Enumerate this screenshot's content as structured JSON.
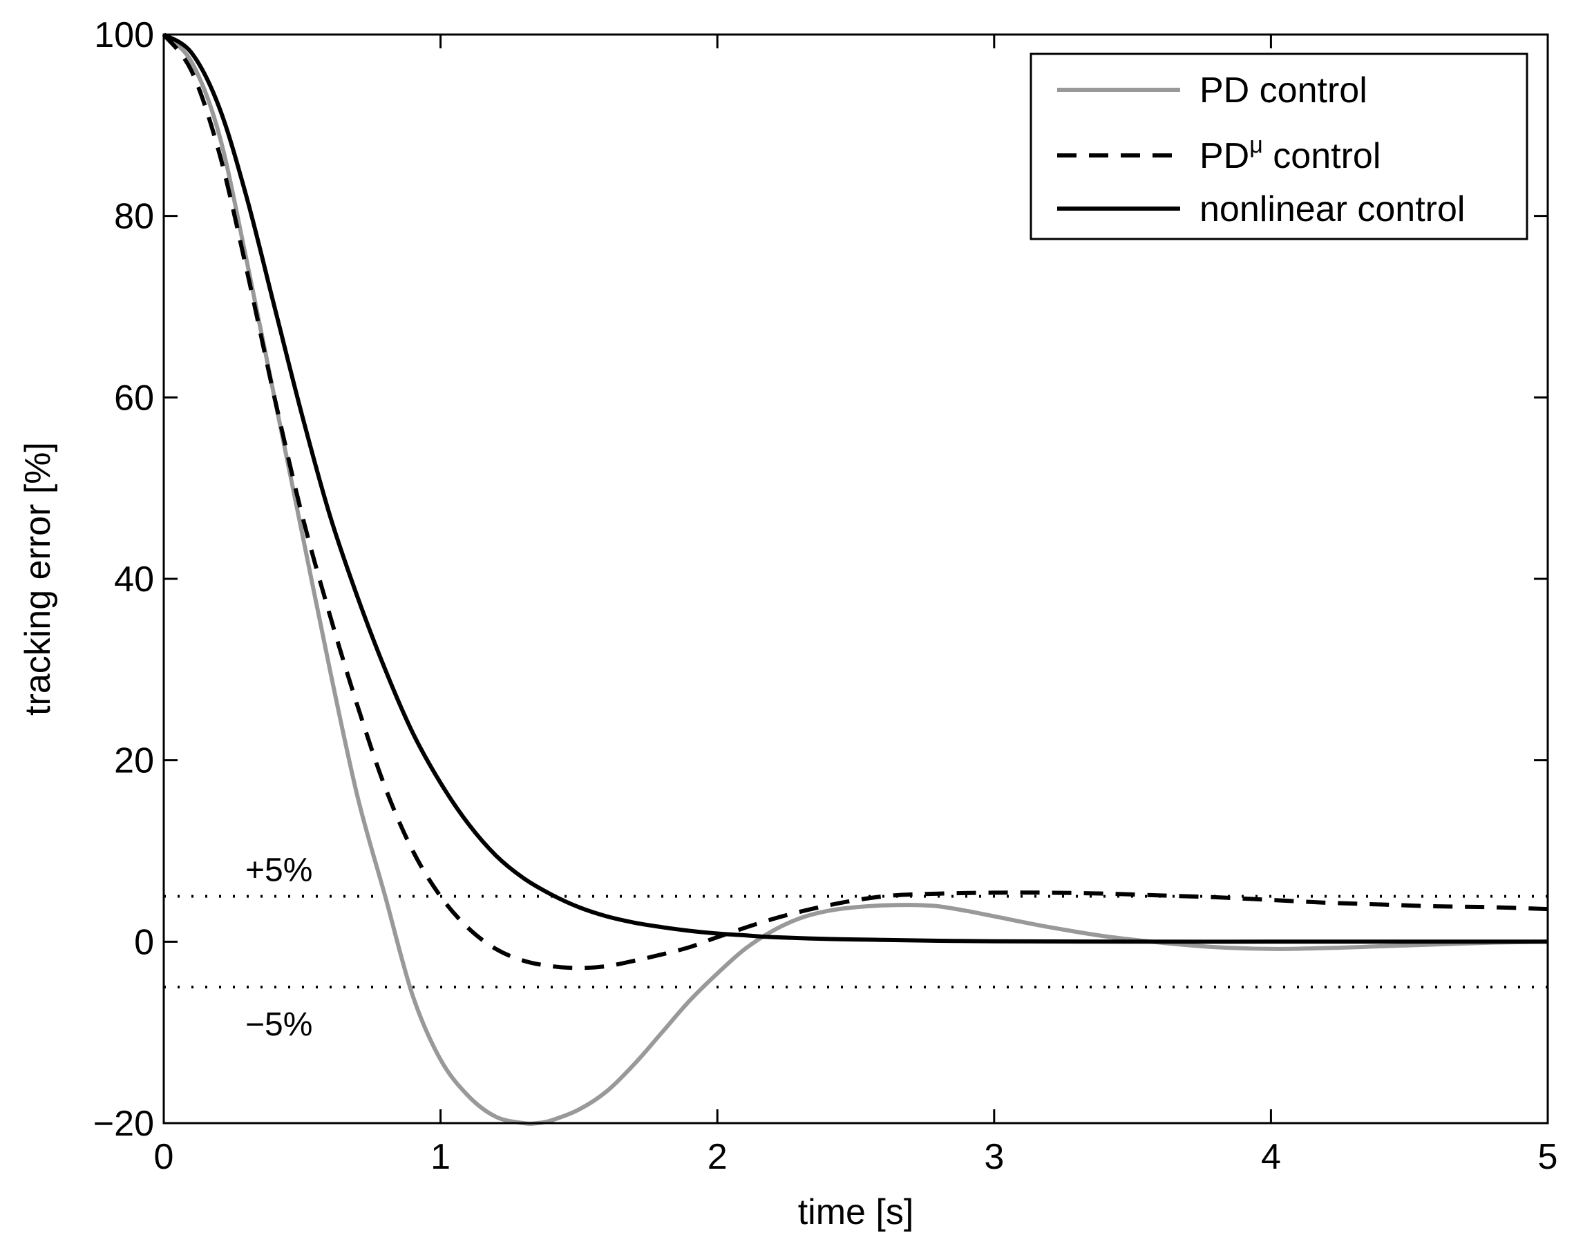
{
  "chart_data": {
    "type": "line",
    "title": "",
    "xlabel": "time  [s]",
    "ylabel": "tracking error  [%]",
    "xlim": [
      0,
      5
    ],
    "ylim": [
      -20,
      100
    ],
    "xticks": [
      0,
      1,
      2,
      3,
      4,
      5
    ],
    "xtick_labels": [
      "0",
      "1",
      "2",
      "3",
      "4",
      "5"
    ],
    "yticks": [
      -20,
      0,
      20,
      40,
      60,
      80,
      100
    ],
    "ytick_labels": [
      "−20",
      "0",
      "20",
      "40",
      "60",
      "80",
      "100"
    ],
    "grid": false,
    "legend": "top-right",
    "colors": {
      "pd": "#999999",
      "pdmu": "#000000",
      "nonlinear": "#000000",
      "band": "#000000"
    },
    "series": [
      {
        "key": "pd",
        "name": "PD control",
        "legend_base": "PD control",
        "legend_sup": "",
        "legend_tail": "",
        "style": "solid-gray",
        "x": [
          0,
          0.1,
          0.2,
          0.3,
          0.4,
          0.5,
          0.6,
          0.7,
          0.8,
          0.9,
          1.0,
          1.1,
          1.2,
          1.3,
          1.35,
          1.4,
          1.5,
          1.6,
          1.7,
          1.8,
          1.9,
          2.0,
          2.1,
          2.2,
          2.3,
          2.4,
          2.5,
          2.6,
          2.7,
          2.75,
          2.8,
          2.9,
          3.0,
          3.2,
          3.4,
          3.6,
          3.8,
          4.0,
          4.2,
          4.4,
          4.6,
          4.8,
          5.0
        ],
        "y": [
          100,
          97,
          89,
          75,
          60,
          45,
          30,
          16,
          5,
          -6,
          -13,
          -17,
          -19.3,
          -20,
          -20,
          -19.7,
          -18.5,
          -16.5,
          -13.5,
          -10,
          -6.5,
          -3.5,
          -0.8,
          1.2,
          2.6,
          3.4,
          3.8,
          4.0,
          4.05,
          4.0,
          3.9,
          3.4,
          2.8,
          1.6,
          0.6,
          -0.1,
          -0.6,
          -0.8,
          -0.7,
          -0.5,
          -0.3,
          -0.1,
          0
        ]
      },
      {
        "key": "pdmu",
        "name": "PDμ control",
        "legend_base": "PD",
        "legend_sup": "μ",
        "legend_tail": " control",
        "style": "dashed-black",
        "x": [
          0,
          0.1,
          0.2,
          0.3,
          0.4,
          0.5,
          0.6,
          0.7,
          0.8,
          0.9,
          1.0,
          1.1,
          1.2,
          1.3,
          1.4,
          1.5,
          1.6,
          1.7,
          1.8,
          1.9,
          2.0,
          2.2,
          2.4,
          2.6,
          2.8,
          3.0,
          3.2,
          3.4,
          3.6,
          3.8,
          4.0,
          4.2,
          4.4,
          4.6,
          4.8,
          5.0
        ],
        "y": [
          100,
          96,
          87,
          74,
          60,
          47,
          36,
          26,
          17,
          10,
          5,
          1.5,
          -0.8,
          -2.1,
          -2.7,
          -2.9,
          -2.7,
          -2.1,
          -1.4,
          -0.6,
          0.5,
          2.5,
          4.0,
          5.0,
          5.3,
          5.4,
          5.4,
          5.3,
          5.1,
          4.9,
          4.6,
          4.3,
          4.1,
          3.9,
          3.8,
          3.6
        ]
      },
      {
        "key": "nonlinear",
        "name": "nonlinear control",
        "legend_base": "nonlinear control",
        "legend_sup": "",
        "legend_tail": "",
        "style": "solid-black",
        "x": [
          0,
          0.1,
          0.2,
          0.3,
          0.4,
          0.5,
          0.6,
          0.7,
          0.8,
          0.9,
          1.0,
          1.1,
          1.2,
          1.3,
          1.4,
          1.5,
          1.6,
          1.7,
          1.8,
          1.9,
          2.0,
          2.1,
          2.2,
          2.4,
          2.6,
          2.8,
          3.0,
          3.5,
          4.0,
          4.5,
          5.0
        ],
        "y": [
          100,
          98,
          92,
          82,
          70,
          58,
          47,
          38,
          30,
          23,
          17.5,
          13,
          9.5,
          7,
          5.2,
          3.8,
          2.8,
          2.1,
          1.6,
          1.2,
          0.9,
          0.7,
          0.5,
          0.3,
          0.2,
          0.1,
          0.05,
          0,
          0,
          0,
          0
        ]
      }
    ],
    "bands": [
      {
        "y": 5,
        "label": "+5%",
        "style": "dotted"
      },
      {
        "y": -5,
        "label": "−5%",
        "style": "dotted"
      }
    ]
  }
}
